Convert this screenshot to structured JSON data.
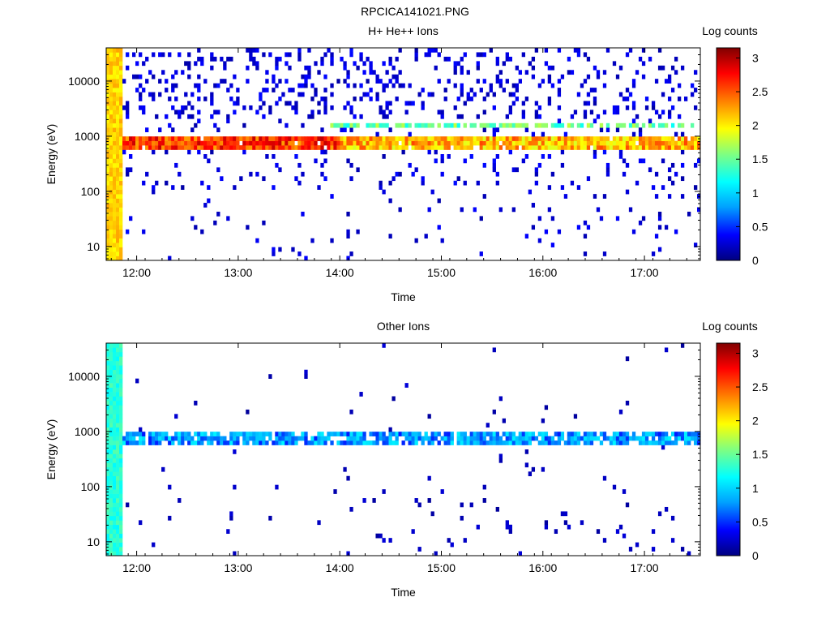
{
  "figure_title": "RPCICA141021.PNG",
  "colorscale": [
    "#000080",
    "#0000ff",
    "#00a0ff",
    "#00ffff",
    "#80ff80",
    "#ffff00",
    "#ff8000",
    "#ff0000",
    "#800000"
  ],
  "chart_data": [
    {
      "type": "heatmap",
      "title": "H+ He++ Ions",
      "xlabel": "Time",
      "ylabel": "Energy (eV)",
      "x_ticks": [
        "12:00",
        "13:00",
        "14:00",
        "15:00",
        "16:00",
        "17:00"
      ],
      "x_tick_hours": [
        12,
        13,
        14,
        15,
        16,
        17
      ],
      "xlim_hours": [
        11.7,
        17.55
      ],
      "y_scale": "log",
      "ylim": [
        5.6,
        40000
      ],
      "y_ticks": [
        10,
        100,
        1000,
        10000
      ],
      "y_tick_labels": [
        "10",
        "100",
        "1000",
        "10000"
      ],
      "colorbar": {
        "label": "Log counts",
        "range": [
          0,
          3.15
        ],
        "ticks": [
          0,
          0.5,
          1,
          1.5,
          2,
          2.5,
          3
        ],
        "tick_labels": [
          "0",
          "0.5",
          "1",
          "1.5",
          "2",
          "2.5",
          "3"
        ]
      },
      "features": {
        "band_energy_eV": 750,
        "band_level_early": 2.6,
        "band_level_late": 2.2,
        "secondary_band_energy_eV": 1700,
        "secondary_band_level": 1.5,
        "start_column_level": 2.1,
        "background_level": 0.3,
        "background_density": "high"
      }
    },
    {
      "type": "heatmap",
      "title": "Other Ions",
      "xlabel": "Time",
      "ylabel": "Energy (eV)",
      "x_ticks": [
        "12:00",
        "13:00",
        "14:00",
        "15:00",
        "16:00",
        "17:00"
      ],
      "x_tick_hours": [
        12,
        13,
        14,
        15,
        16,
        17
      ],
      "xlim_hours": [
        11.7,
        17.55
      ],
      "y_scale": "log",
      "ylim": [
        5.6,
        40000
      ],
      "y_ticks": [
        10,
        100,
        1000,
        10000
      ],
      "y_tick_labels": [
        "10",
        "100",
        "1000",
        "10000"
      ],
      "colorbar": {
        "label": "Log counts",
        "range": [
          0,
          3.15
        ],
        "ticks": [
          0,
          0.5,
          1,
          1.5,
          2,
          2.5,
          3
        ],
        "tick_labels": [
          "0",
          "0.5",
          "1",
          "1.5",
          "2",
          "2.5",
          "3"
        ]
      },
      "features": {
        "band_energy_eV": 750,
        "band_level": 0.8,
        "start_column_level": 1.3,
        "background_level": 0.2,
        "background_density": "low"
      }
    }
  ]
}
